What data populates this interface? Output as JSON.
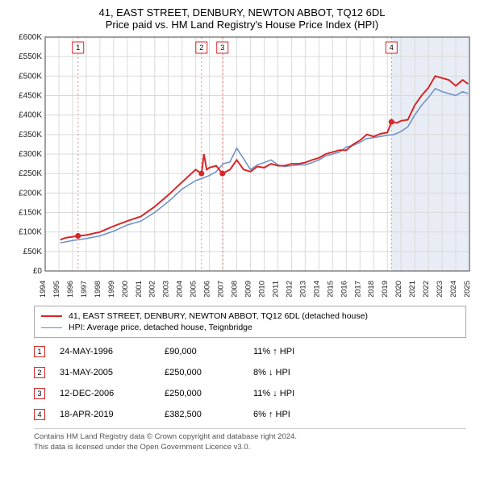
{
  "title_line1": "41, EAST STREET, DENBURY, NEWTON ABBOT, TQ12 6DL",
  "title_line2": "Price paid vs. HM Land Registry's House Price Index (HPI)",
  "title_fontsize": 13,
  "chart": {
    "type": "line",
    "background_color": "#ffffff",
    "plot_bg": "#ffffff",
    "grid_color": "#d9d9d9",
    "shaded_future_color": "#e8edf5",
    "axis_color": "#444444",
    "x_year_min": 1994,
    "x_year_max": 2025,
    "x_tick_step": 1,
    "ylim": [
      0,
      600000
    ],
    "ytick_step": 50000,
    "y_tick_labels": [
      "£0",
      "£50K",
      "£100K",
      "£150K",
      "£200K",
      "£250K",
      "£300K",
      "£350K",
      "£400K",
      "£450K",
      "£500K",
      "£550K",
      "£600K"
    ],
    "tick_fontsize": 10,
    "series": {
      "property": {
        "color": "#d62728",
        "width": 2,
        "points": [
          [
            1995.1,
            80000
          ],
          [
            1995.5,
            85000
          ],
          [
            1996.4,
            90000
          ],
          [
            1997,
            92000
          ],
          [
            1998,
            100000
          ],
          [
            1999,
            115000
          ],
          [
            2000,
            128000
          ],
          [
            2001,
            140000
          ],
          [
            2002,
            165000
          ],
          [
            2003,
            195000
          ],
          [
            2004,
            228000
          ],
          [
            2005,
            260000
          ],
          [
            2005.42,
            250000
          ],
          [
            2005.6,
            300000
          ],
          [
            2005.8,
            260000
          ],
          [
            2006,
            265000
          ],
          [
            2006.5,
            270000
          ],
          [
            2006.95,
            250000
          ],
          [
            2007.5,
            260000
          ],
          [
            2008,
            285000
          ],
          [
            2008.5,
            260000
          ],
          [
            2009,
            255000
          ],
          [
            2009.5,
            268000
          ],
          [
            2010,
            265000
          ],
          [
            2010.5,
            275000
          ],
          [
            2011,
            270000
          ],
          [
            2011.5,
            270000
          ],
          [
            2012,
            275000
          ],
          [
            2012.5,
            275000
          ],
          [
            2013,
            278000
          ],
          [
            2013.5,
            285000
          ],
          [
            2014,
            290000
          ],
          [
            2014.5,
            300000
          ],
          [
            2015,
            305000
          ],
          [
            2015.5,
            310000
          ],
          [
            2016,
            310000
          ],
          [
            2016.5,
            325000
          ],
          [
            2017,
            335000
          ],
          [
            2017.5,
            350000
          ],
          [
            2018,
            345000
          ],
          [
            2018.5,
            352000
          ],
          [
            2019,
            355000
          ],
          [
            2019.3,
            382500
          ],
          [
            2019.7,
            380000
          ],
          [
            2020,
            385000
          ],
          [
            2020.5,
            388000
          ],
          [
            2021,
            425000
          ],
          [
            2021.5,
            450000
          ],
          [
            2022,
            470000
          ],
          [
            2022.5,
            500000
          ],
          [
            2023,
            495000
          ],
          [
            2023.5,
            490000
          ],
          [
            2024,
            475000
          ],
          [
            2024.5,
            490000
          ],
          [
            2024.9,
            480000
          ]
        ]
      },
      "hpi": {
        "color": "#6a8fc7",
        "width": 1.5,
        "points": [
          [
            1995.1,
            72000
          ],
          [
            1996,
            78000
          ],
          [
            1997,
            83000
          ],
          [
            1998,
            90000
          ],
          [
            1999,
            102000
          ],
          [
            2000,
            118000
          ],
          [
            2001,
            128000
          ],
          [
            2002,
            150000
          ],
          [
            2003,
            178000
          ],
          [
            2004,
            210000
          ],
          [
            2005,
            232000
          ],
          [
            2005.5,
            238000
          ],
          [
            2006,
            245000
          ],
          [
            2006.5,
            255000
          ],
          [
            2007,
            275000
          ],
          [
            2007.5,
            280000
          ],
          [
            2008,
            315000
          ],
          [
            2008.5,
            288000
          ],
          [
            2009,
            260000
          ],
          [
            2009.5,
            272000
          ],
          [
            2010,
            278000
          ],
          [
            2010.5,
            285000
          ],
          [
            2011,
            272000
          ],
          [
            2011.5,
            268000
          ],
          [
            2012,
            270000
          ],
          [
            2012.5,
            272000
          ],
          [
            2013,
            272000
          ],
          [
            2013.5,
            278000
          ],
          [
            2014,
            285000
          ],
          [
            2014.5,
            295000
          ],
          [
            2015,
            300000
          ],
          [
            2015.5,
            305000
          ],
          [
            2016,
            318000
          ],
          [
            2016.5,
            322000
          ],
          [
            2017,
            330000
          ],
          [
            2017.5,
            340000
          ],
          [
            2018,
            342000
          ],
          [
            2018.5,
            345000
          ],
          [
            2019,
            348000
          ],
          [
            2019.5,
            350000
          ],
          [
            2020,
            358000
          ],
          [
            2020.5,
            370000
          ],
          [
            2021,
            400000
          ],
          [
            2021.5,
            425000
          ],
          [
            2022,
            445000
          ],
          [
            2022.5,
            468000
          ],
          [
            2023,
            460000
          ],
          [
            2023.5,
            455000
          ],
          [
            2024,
            450000
          ],
          [
            2024.5,
            460000
          ],
          [
            2024.9,
            455000
          ]
        ]
      }
    },
    "sale_markers": [
      {
        "n": "1",
        "year": 1996.4,
        "price": 90000,
        "color": "#d62728"
      },
      {
        "n": "2",
        "year": 2005.42,
        "price": 250000,
        "color": "#d62728"
      },
      {
        "n": "3",
        "year": 2006.95,
        "price": 250000,
        "color": "#d62728"
      },
      {
        "n": "4",
        "year": 2019.3,
        "price": 382500,
        "color": "#d62728"
      }
    ],
    "marker_dash_color": "#e58a8a"
  },
  "legend": {
    "border_color": "#aaaaaa",
    "rows": [
      {
        "color": "#d62728",
        "width": 2,
        "label": "41, EAST STREET, DENBURY, NEWTON ABBOT, TQ12 6DL (detached house)"
      },
      {
        "color": "#6a8fc7",
        "width": 1.5,
        "label": "HPI: Average price, detached house, Teignbridge"
      }
    ]
  },
  "sales_table": {
    "rows": [
      {
        "n": "1",
        "date": "24-MAY-1996",
        "price": "£90,000",
        "pct": "11% ↑ HPI",
        "color": "#d62728"
      },
      {
        "n": "2",
        "date": "31-MAY-2005",
        "price": "£250,000",
        "pct": "8% ↓ HPI",
        "color": "#d62728"
      },
      {
        "n": "3",
        "date": "12-DEC-2006",
        "price": "£250,000",
        "pct": "11% ↓ HPI",
        "color": "#d62728"
      },
      {
        "n": "4",
        "date": "18-APR-2019",
        "price": "£382,500",
        "pct": "6% ↑ HPI",
        "color": "#d62728"
      }
    ]
  },
  "footer": {
    "line1": "Contains HM Land Registry data © Crown copyright and database right 2024.",
    "line2": "This data is licensed under the Open Government Licence v3.0."
  }
}
